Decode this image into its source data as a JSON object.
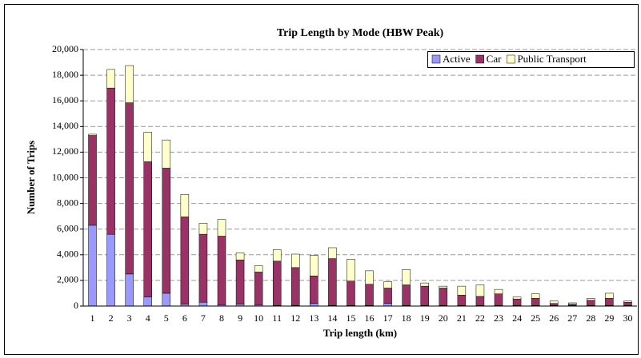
{
  "chart_data": {
    "type": "stacked_bar",
    "title": "Trip Length by Mode (HBW Peak)",
    "x_label": "Trip length (km)",
    "y_label": "Number of Trips",
    "categories": [
      "1",
      "2",
      "3",
      "4",
      "5",
      "6",
      "7",
      "8",
      "9",
      "10",
      "11",
      "12",
      "13",
      "14",
      "15",
      "16",
      "17",
      "18",
      "19",
      "20",
      "21",
      "22",
      "23",
      "24",
      "25",
      "26",
      "27",
      "28",
      "29",
      "30"
    ],
    "series": [
      {
        "name": "Active",
        "color": "#9999ff",
        "values": [
          6300,
          5600,
          2500,
          700,
          1000,
          150,
          300,
          100,
          150,
          100,
          50,
          50,
          200,
          50,
          50,
          50,
          200,
          50,
          50,
          50,
          50,
          50,
          50,
          50,
          50,
          50,
          50,
          50,
          50,
          50
        ]
      },
      {
        "name": "Car",
        "color": "#993366",
        "values": [
          7000,
          11400,
          13350,
          10550,
          9750,
          6800,
          5300,
          5350,
          3450,
          2550,
          3450,
          2950,
          2150,
          3650,
          1900,
          1650,
          1200,
          1600,
          1500,
          1350,
          800,
          700,
          900,
          500,
          550,
          150,
          100,
          400,
          550,
          250
        ]
      },
      {
        "name": "Public Transport",
        "color": "#ffffcc",
        "values": [
          100,
          1450,
          2900,
          2300,
          2200,
          1750,
          850,
          1300,
          550,
          500,
          900,
          1050,
          1600,
          850,
          1700,
          1050,
          500,
          1200,
          250,
          150,
          700,
          900,
          350,
          150,
          350,
          200,
          100,
          150,
          400,
          100
        ]
      }
    ],
    "ylim": [
      0,
      20000
    ],
    "yticks": [
      0,
      {
        "value": 2000,
        "label": "2,000"
      },
      {
        "value": 4000,
        "label": "4,000"
      },
      {
        "value": 6000,
        "label": "6,000"
      },
      {
        "value": 8000,
        "label": "8,000"
      },
      {
        "value": 10000,
        "label": "10,000"
      },
      {
        "value": 12000,
        "label": "12,000"
      },
      {
        "value": 14000,
        "label": "14,000"
      },
      {
        "value": 16000,
        "label": "16,000"
      },
      {
        "value": 18000,
        "label": "18,000"
      },
      {
        "value": 20000,
        "label": "20,000"
      }
    ],
    "grid": true,
    "legend": "top-right"
  }
}
